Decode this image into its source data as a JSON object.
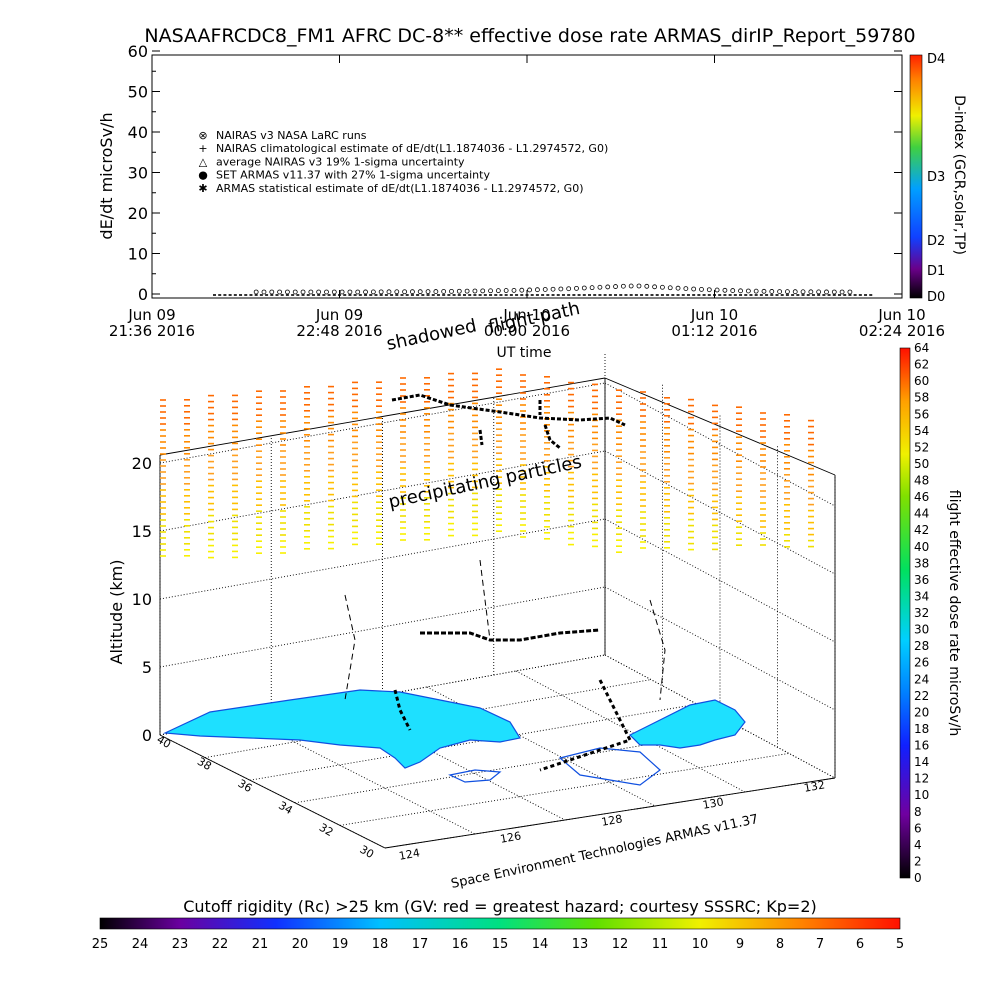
{
  "chart_data": [
    {
      "type": "line",
      "title": "NASAAFRCDC8_FM1 AFRC DC-8** effective dose rate ARMAS_dirIP_Report_59780",
      "ylabel": "dE/dt microSv/h",
      "xlabel": "UT time",
      "ylim": [
        0,
        60
      ],
      "y_ticks": [
        "0",
        "10",
        "20",
        "30",
        "40",
        "50",
        "60"
      ],
      "x_ticks": [
        {
          "line1": "Jun 09",
          "line2": "21:36 2016"
        },
        {
          "line1": "Jun 09",
          "line2": "22:48 2016"
        },
        {
          "line1": "Jun 10",
          "line2": "00:00 2016"
        },
        {
          "line1": "Jun 10",
          "line2": "01:12 2016"
        },
        {
          "line1": "Jun 10",
          "line2": "02:24 2016"
        }
      ],
      "x_range_minutes": [
        0,
        288
      ],
      "legend": [
        {
          "symbol": "⊗",
          "label": "NAIRAS v3 NASA LaRC runs"
        },
        {
          "symbol": "+",
          "label": "NAIRAS climatological estimate of dE/dt(L1.1874036 - L1.2974572, G0)"
        },
        {
          "symbol": "△",
          "label": "average NAIRAS v3 19% 1-sigma uncertainty"
        },
        {
          "symbol": "●",
          "label": "SET ARMAS v11.37 with 27% 1-sigma uncertainty",
          "color": "#1030d0"
        },
        {
          "symbol": "✱",
          "label": "ARMAS statistical estimate of dE/dt(L1.1874036 - L1.2974572, G0)"
        }
      ],
      "legend_placement": "upper-left",
      "series": [
        {
          "name": "NAIRAS v3 NASA LaRC runs",
          "x": [
            24,
            50,
            80,
            110,
            140,
            160,
            170,
            180,
            186,
            190,
            200,
            212,
            225,
            240,
            260,
            276
          ],
          "values": [
            0.5,
            0.5,
            0.5,
            0.6,
            0.9,
            1.3,
            1.6,
            1.9,
            2.0,
            1.9,
            1.5,
            1.1,
            0.8,
            0.6,
            0.5,
            0.5
          ]
        }
      ],
      "right_colorbar": {
        "title": "D-index (GCR,solar,TP)",
        "labels": [
          "D0",
          "D1",
          "D2",
          "D3",
          "D4"
        ]
      }
    },
    {
      "type": "scatter",
      "zlabel": "Altitude (km)",
      "z_ticks": [
        "0",
        "5",
        "10",
        "15",
        "20"
      ],
      "lat_ticks": [
        "40",
        "38",
        "36",
        "34",
        "32",
        "30"
      ],
      "lon_ticks": [
        "124",
        "126",
        "128",
        "130",
        "132"
      ],
      "annotations": {
        "flight_path": "flight path",
        "shadowed": "shadowed",
        "precipitating": "precipitating particles",
        "credit": "Space Environment Technologies ARMAS v11.37"
      },
      "right_colorbar": {
        "title": "flight effective dose rate microSv/h",
        "labels": [
          "0",
          "2",
          "4",
          "6",
          "8",
          "10",
          "12",
          "14",
          "16",
          "18",
          "20",
          "22",
          "24",
          "26",
          "28",
          "30",
          "32",
          "34",
          "36",
          "38",
          "40",
          "42",
          "44",
          "46",
          "48",
          "50",
          "52",
          "54",
          "56",
          "58",
          "60",
          "62",
          "64"
        ]
      },
      "bottom_colorbar": {
        "title": "Cutoff rigidity (Rc) >25 km (GV: red = greatest hazard; courtesy SSSRC; Kp=2)",
        "labels": [
          "25",
          "24",
          "23",
          "22",
          "21",
          "20",
          "19",
          "18",
          "17",
          "16",
          "15",
          "14",
          "13",
          "12",
          "11",
          "10",
          "9",
          "8",
          "7",
          "6",
          "5"
        ]
      },
      "land_color": "#1ee0ff"
    }
  ]
}
